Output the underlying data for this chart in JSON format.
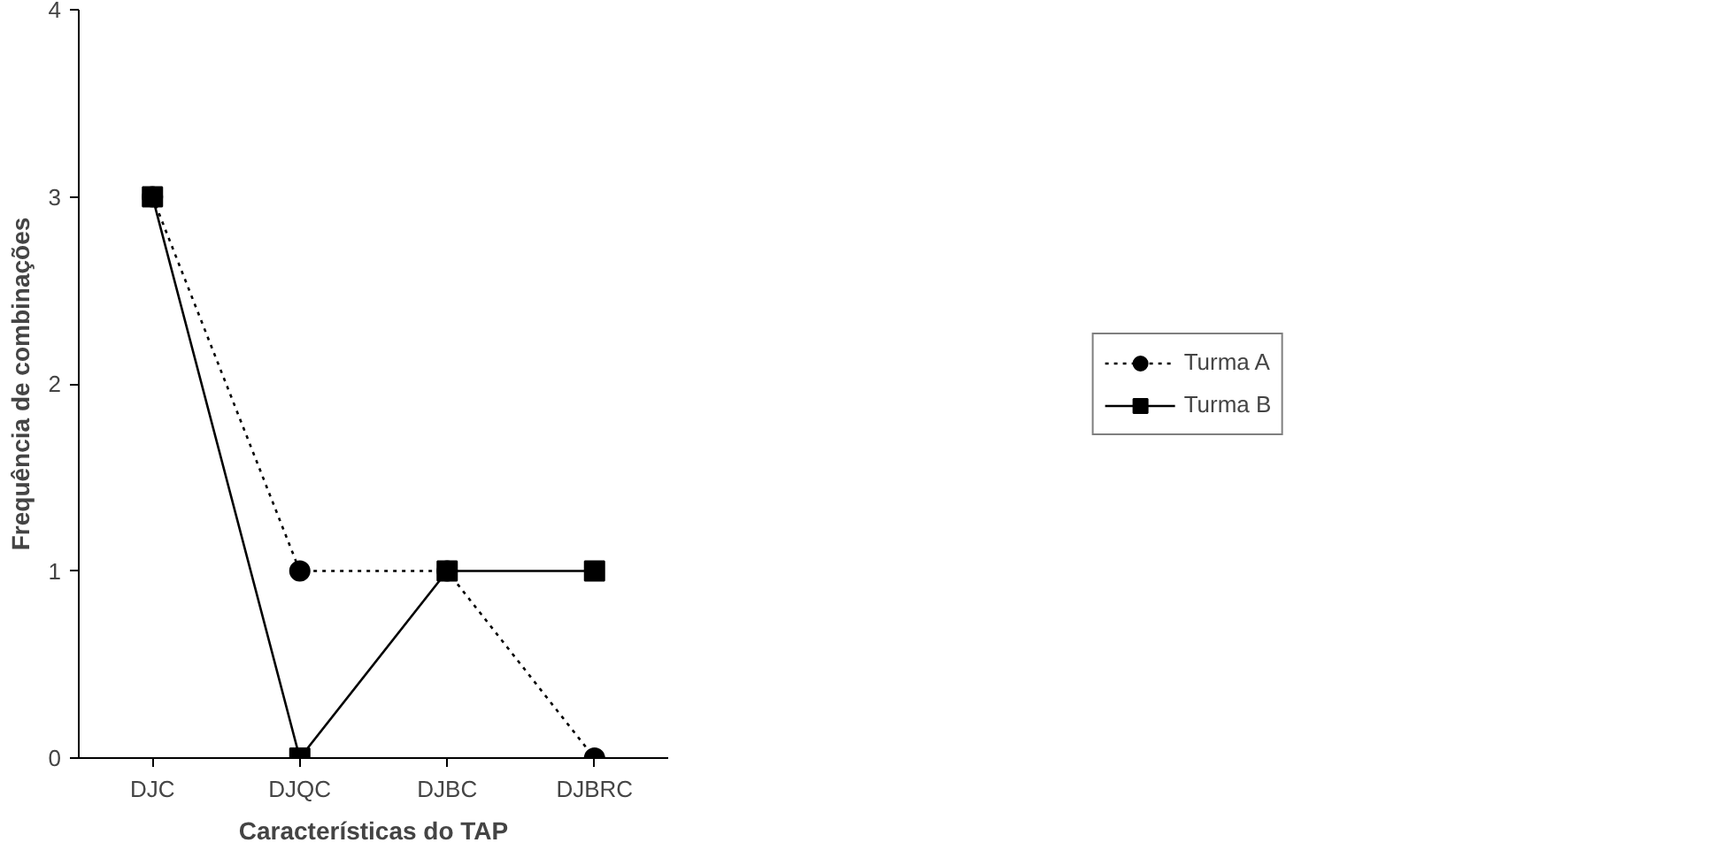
{
  "chart_data": {
    "type": "line",
    "xlabel": "Características do TAP",
    "ylabel": "Frequência de combinações",
    "categories": [
      "DJC",
      "DJQC",
      "DJBC",
      "DJBRC"
    ],
    "series": [
      {
        "name": "Turma A",
        "color": "#000000",
        "values": [
          3,
          1,
          1,
          0
        ],
        "marker": "circle",
        "line_style": "dotted"
      },
      {
        "name": "Turma B",
        "color": "#000000",
        "values": [
          3,
          0,
          1,
          1
        ],
        "marker": "square",
        "line_style": "solid"
      }
    ],
    "ylim": [
      0,
      4
    ],
    "yticks": [
      0,
      1,
      2,
      3,
      4
    ],
    "grid": false,
    "legend": "right"
  }
}
